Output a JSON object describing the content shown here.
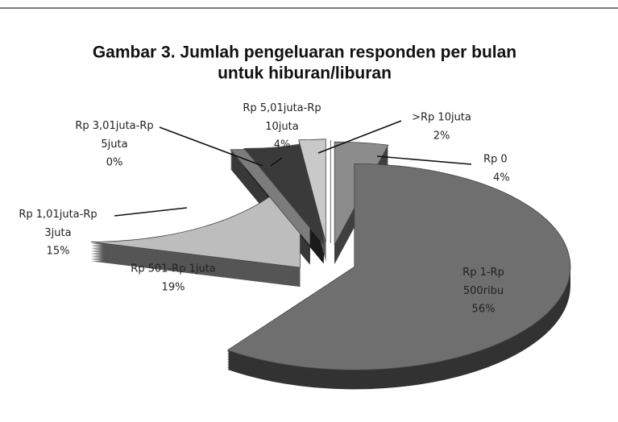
{
  "chart_data": {
    "type": "pie",
    "title": [
      "Gambar 3. Jumlah pengeluaran responden per bulan",
      "untuk hiburan/liburan"
    ],
    "categories": [
      "Rp 0",
      "Rp 1-Rp 500ribu",
      "Rp 501-Rp 1juta",
      "Rp 1,01juta-Rp 3juta",
      "Rp 3,01juta-Rp 5juta",
      "Rp 5,01juta-Rp 10juta",
      ">Rp 10juta"
    ],
    "values": [
      4,
      56,
      19,
      15,
      0,
      4,
      2
    ],
    "value_labels": [
      "4%",
      "56%",
      "19%",
      "15%",
      "0%",
      "4%",
      "2%"
    ],
    "colors": [
      "#8c8c8c",
      "#6f6f6f",
      "#bdbdbd",
      "#7c7c7c",
      "#3a3a3a",
      "#c9c9c9",
      "#d2d2d2"
    ]
  }
}
